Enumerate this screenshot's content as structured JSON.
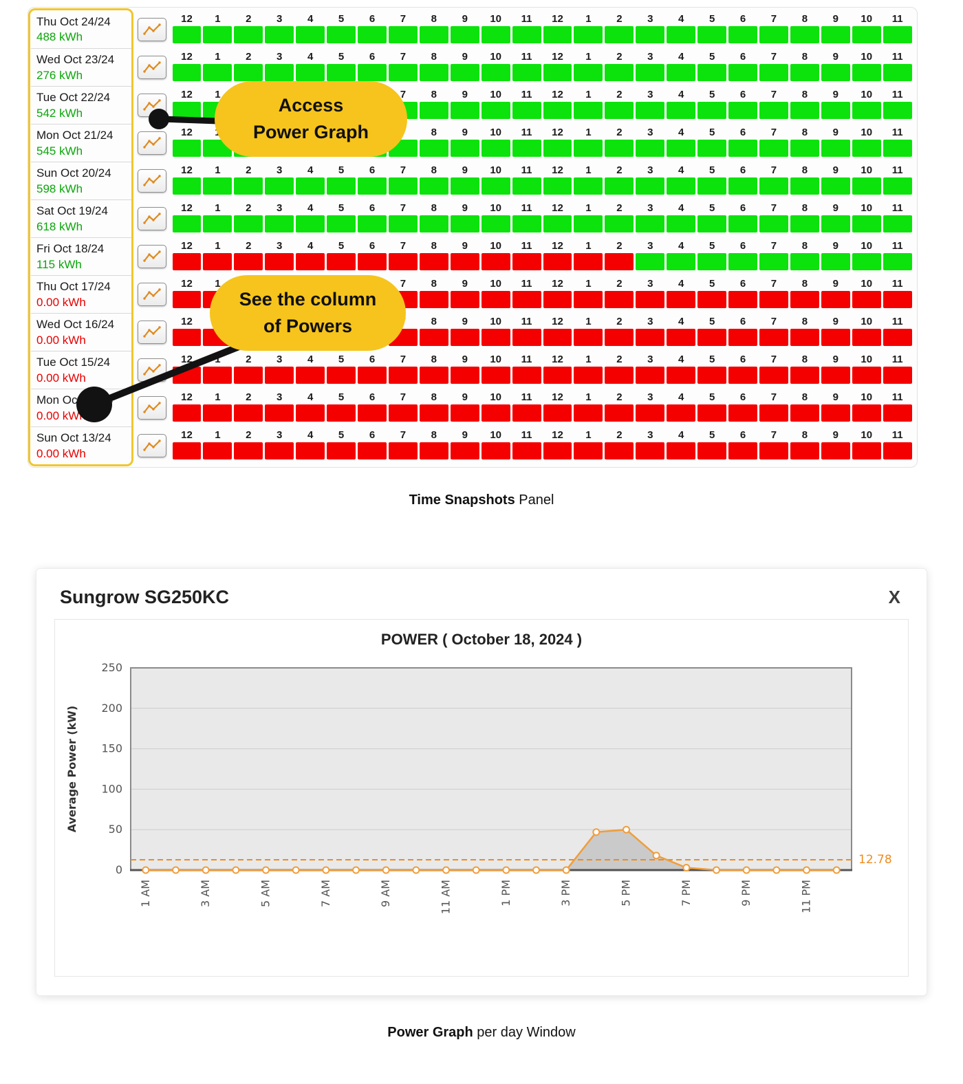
{
  "colors": {
    "cell_green": "#0ce30c",
    "cell_red": "#f40000",
    "kwh_green_text": "#0aa60a",
    "kwh_red_text": "#e80000",
    "callout_bg": "#f6c41c",
    "highlight_border": "#f0c62e",
    "icon_line": "#e08a1f"
  },
  "snapshots": {
    "hour_labels": [
      "12",
      "1",
      "2",
      "3",
      "4",
      "5",
      "6",
      "7",
      "8",
      "9",
      "10",
      "11",
      "12",
      "1",
      "2",
      "3",
      "4",
      "5",
      "6",
      "7",
      "8",
      "9",
      "10",
      "11"
    ],
    "rows": [
      {
        "date": "Thu Oct 24/24",
        "kwh": "488 kWh",
        "status": "green",
        "cells": "GGGGGGGGGGGGGGGGGGGGGGGG"
      },
      {
        "date": "Wed Oct 23/24",
        "kwh": "276 kWh",
        "status": "green",
        "cells": "GGGGGGGGGGGGGGGGGGGGGGGG"
      },
      {
        "date": "Tue Oct 22/24",
        "kwh": "542 kWh",
        "status": "green",
        "cells": "GGGGGGGGGGGGGGGGGGGGGGGG"
      },
      {
        "date": "Mon Oct 21/24",
        "kwh": "545 kWh",
        "status": "green",
        "cells": "GGGGGGGGGGGGGGGGGGGGGGGG"
      },
      {
        "date": "Sun Oct 20/24",
        "kwh": "598 kWh",
        "status": "green",
        "cells": "GGGGGGGGGGGGGGGGGGGGGGGG"
      },
      {
        "date": "Sat Oct 19/24",
        "kwh": "618 kWh",
        "status": "green",
        "cells": "GGGGGGGGGGGGGGGGGGGGGGGG"
      },
      {
        "date": "Fri Oct 18/24",
        "kwh": "115 kWh",
        "status": "green",
        "cells": "RRRRRRRRRRRRRRRGGGGGGGGG"
      },
      {
        "date": "Thu Oct 17/24",
        "kwh": "0.00 kWh",
        "status": "red",
        "cells": "RRRRRRRRRRRRRRRRRRRRRRRR"
      },
      {
        "date": "Wed Oct 16/24",
        "kwh": "0.00 kWh",
        "status": "red",
        "cells": "RRRRRRRRRRRRRRRRRRRRRRRR"
      },
      {
        "date": "Tue Oct 15/24",
        "kwh": "0.00 kWh",
        "status": "red",
        "cells": "RRRRRRRRRRRRRRRRRRRRRRRR"
      },
      {
        "date": "Mon Oct 14/24",
        "kwh": "0.00 kWh",
        "status": "red",
        "cells": "RRRRRRRRRRRRRRRRRRRRRRRR"
      },
      {
        "date": "Sun Oct 13/24",
        "kwh": "0.00 kWh",
        "status": "red",
        "cells": "RRRRRRRRRRRRRRRRRRRRRRRR"
      }
    ],
    "caption_bold": "Time Snapshots",
    "caption_rest": " Panel"
  },
  "callouts": [
    {
      "line1": "Access",
      "line2": "Power Graph"
    },
    {
      "line1": "See the column",
      "line2": "of Powers"
    }
  ],
  "power_window": {
    "title": "Sungrow SG250KC",
    "close_label": "X",
    "caption_bold": "Power Graph",
    "caption_rest": " per day Window"
  },
  "chart_data": {
    "type": "line",
    "title": "POWER ( October 18, 2024 )",
    "xlabel": "",
    "ylabel": "Average Power (kW)",
    "ylim": [
      0,
      250
    ],
    "yticks": [
      0,
      50,
      100,
      150,
      200,
      250
    ],
    "x": [
      "1 AM",
      "2 AM",
      "3 AM",
      "4 AM",
      "5 AM",
      "6 AM",
      "7 AM",
      "8 AM",
      "9 AM",
      "10 AM",
      "11 AM",
      "12 PM",
      "1 PM",
      "2 PM",
      "3 PM",
      "4 PM",
      "5 PM",
      "6 PM",
      "7 PM",
      "8 PM",
      "9 PM",
      "10 PM",
      "11 PM",
      "12 AM"
    ],
    "x_tick_step": 2,
    "values": [
      0,
      0,
      0,
      0,
      0,
      0,
      0,
      0,
      0,
      0,
      0,
      0,
      0,
      0,
      0,
      47,
      50,
      18,
      3,
      0,
      0,
      0,
      0,
      0
    ],
    "threshold": 12.78,
    "threshold_label": "12.78",
    "series_color": "#f09d3c",
    "threshold_color": "#f08b1e",
    "plot_bg": "#e9e9e9",
    "grid_color": "#cccccc",
    "grid": true,
    "legend": "none"
  }
}
